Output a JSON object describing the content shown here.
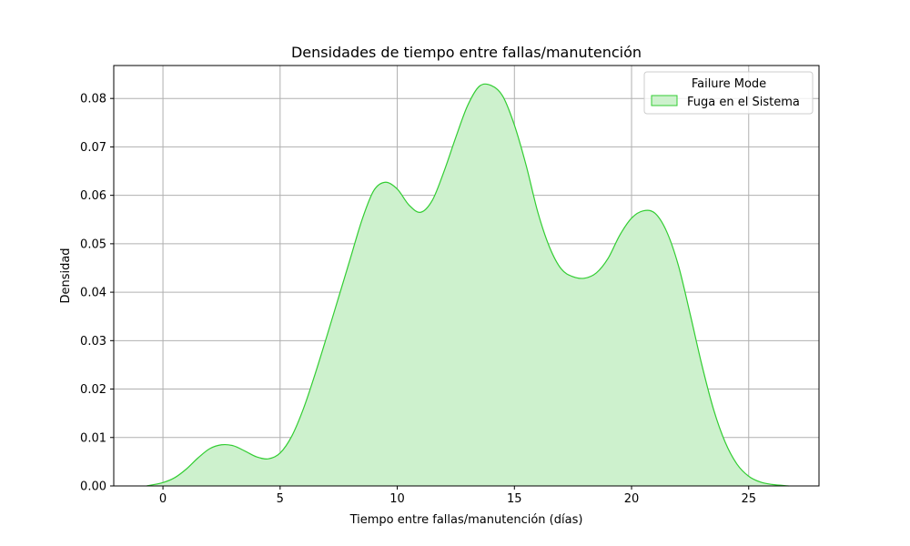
{
  "chart_data": {
    "type": "area",
    "title": "Densidades de tiempo entre fallas/manutención",
    "xlabel": "Tiempo entre fallas/manutención (días)",
    "ylabel": "Densidad",
    "xlim": [
      -2.1,
      28.0
    ],
    "ylim": [
      0.0,
      0.0868
    ],
    "xticks": [
      0,
      5,
      10,
      15,
      20,
      25
    ],
    "yticks": [
      0.0,
      0.01,
      0.02,
      0.03,
      0.04,
      0.05,
      0.06,
      0.07,
      0.08
    ],
    "xtick_labels": [
      "0",
      "5",
      "10",
      "15",
      "20",
      "25"
    ],
    "ytick_labels": [
      "0.00",
      "0.01",
      "0.02",
      "0.03",
      "0.04",
      "0.05",
      "0.06",
      "0.07",
      "0.08"
    ],
    "grid": true,
    "legend": {
      "title": "Failure Mode",
      "placement": "top-right"
    },
    "series": [
      {
        "name": "Fuga en el Sistema",
        "color": "#32cd32",
        "fill": "#cdf1cd",
        "x": [
          -0.7,
          0.0,
          0.5,
          1.0,
          1.5,
          2.0,
          2.5,
          3.0,
          3.5,
          4.0,
          4.5,
          5.0,
          5.5,
          6.0,
          6.5,
          7.0,
          7.5,
          8.0,
          8.5,
          9.0,
          9.5,
          10.0,
          10.5,
          11.0,
          11.5,
          12.0,
          12.5,
          13.0,
          13.5,
          14.0,
          14.5,
          15.0,
          15.5,
          16.0,
          16.5,
          17.0,
          17.5,
          18.0,
          18.5,
          19.0,
          19.5,
          20.0,
          20.5,
          21.0,
          21.5,
          22.0,
          22.5,
          23.0,
          23.5,
          24.0,
          24.5,
          25.0,
          25.5,
          26.0,
          26.7
        ],
        "y": [
          0.0,
          0.0007,
          0.0017,
          0.0035,
          0.0058,
          0.0077,
          0.0085,
          0.0083,
          0.0072,
          0.006,
          0.0056,
          0.0068,
          0.0103,
          0.016,
          0.0232,
          0.031,
          0.039,
          0.047,
          0.055,
          0.061,
          0.0627,
          0.0613,
          0.058,
          0.0565,
          0.059,
          0.065,
          0.072,
          0.0785,
          0.0825,
          0.0827,
          0.0805,
          0.0745,
          0.0662,
          0.0565,
          0.0493,
          0.0448,
          0.0432,
          0.0429,
          0.044,
          0.047,
          0.0518,
          0.0553,
          0.0568,
          0.0563,
          0.0525,
          0.0455,
          0.0355,
          0.025,
          0.0158,
          0.009,
          0.0045,
          0.002,
          0.0008,
          0.0003,
          0.0
        ]
      }
    ]
  }
}
